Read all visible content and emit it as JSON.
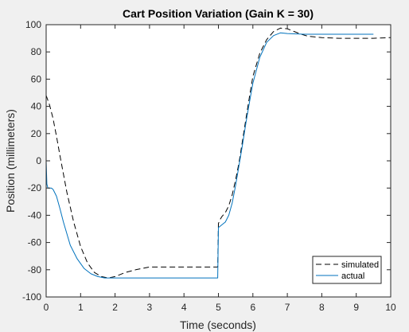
{
  "figure_background": "#f0f0f0",
  "chart_data": {
    "type": "line",
    "title": "Cart Position Variation (Gain K = 30)",
    "xlabel": "Time (seconds)",
    "ylabel": "Position (millimeters)",
    "xlim": [
      0,
      10
    ],
    "ylim": [
      -100,
      100
    ],
    "xticks": [
      0,
      1,
      2,
      3,
      4,
      5,
      6,
      7,
      8,
      9,
      10
    ],
    "yticks": [
      -100,
      -80,
      -60,
      -40,
      -20,
      0,
      20,
      40,
      60,
      80,
      100
    ],
    "xtick_labels": [
      "0",
      "1",
      "2",
      "3",
      "4",
      "5",
      "6",
      "7",
      "8",
      "9",
      "10"
    ],
    "ytick_labels": [
      "-100",
      "-80",
      "-60",
      "-40",
      "-20",
      "0",
      "20",
      "40",
      "60",
      "80",
      "100"
    ],
    "grid": false,
    "legend_position": "bottom-right",
    "series": [
      {
        "name": "simulated",
        "style": "dashed",
        "color": "#000000",
        "x": [
          0,
          0.1,
          0.2,
          0.3,
          0.4,
          0.6,
          0.8,
          1.0,
          1.2,
          1.4,
          1.6,
          1.8,
          2.0,
          2.3,
          2.6,
          3.0,
          3.5,
          4.0,
          4.5,
          4.98,
          5.0,
          5.05,
          5.1,
          5.2,
          5.3,
          5.4,
          5.5,
          5.6,
          5.7,
          5.8,
          5.9,
          6.0,
          6.2,
          6.4,
          6.6,
          6.8,
          7.0,
          7.2,
          7.4,
          7.6,
          7.8,
          8.0,
          8.5,
          9.0,
          9.5,
          10.0
        ],
        "y": [
          48,
          41,
          31,
          18,
          4,
          -23,
          -45,
          -63,
          -75,
          -82,
          -85,
          -86,
          -85,
          -82,
          -80,
          -78,
          -78,
          -78,
          -78,
          -78,
          -46,
          -43,
          -41,
          -38,
          -33,
          -25,
          -14,
          -1,
          15,
          31,
          47,
          62,
          79,
          89,
          95,
          97.5,
          97,
          95,
          93,
          91.5,
          91,
          90.5,
          90,
          90,
          90,
          90.5
        ]
      },
      {
        "name": "actual",
        "style": "solid",
        "color": "#0072bd",
        "x": [
          0,
          0.02,
          0.05,
          0.1,
          0.15,
          0.2,
          0.3,
          0.4,
          0.5,
          0.7,
          0.9,
          1.1,
          1.3,
          1.5,
          1.7,
          1.8,
          2.0,
          2.5,
          3.0,
          4.0,
          4.98,
          5.0,
          5.05,
          5.1,
          5.2,
          5.3,
          5.4,
          5.5,
          5.6,
          5.7,
          5.8,
          5.9,
          6.0,
          6.2,
          6.4,
          6.6,
          6.8,
          7.0,
          7.5,
          8.0,
          8.5,
          9.0,
          9.5,
          9.5
        ],
        "y": [
          0,
          -17,
          -20,
          -20,
          -20,
          -21,
          -26,
          -35,
          -45,
          -62,
          -72,
          -79,
          -83,
          -85,
          -86,
          -86,
          -86,
          -86,
          -86,
          -86,
          -86,
          -49,
          -48,
          -47,
          -45,
          -40,
          -31,
          -18,
          -3,
          12,
          28,
          43,
          57,
          76,
          87,
          92,
          94,
          93.5,
          93,
          93,
          93,
          93,
          93,
          93
        ]
      }
    ]
  }
}
